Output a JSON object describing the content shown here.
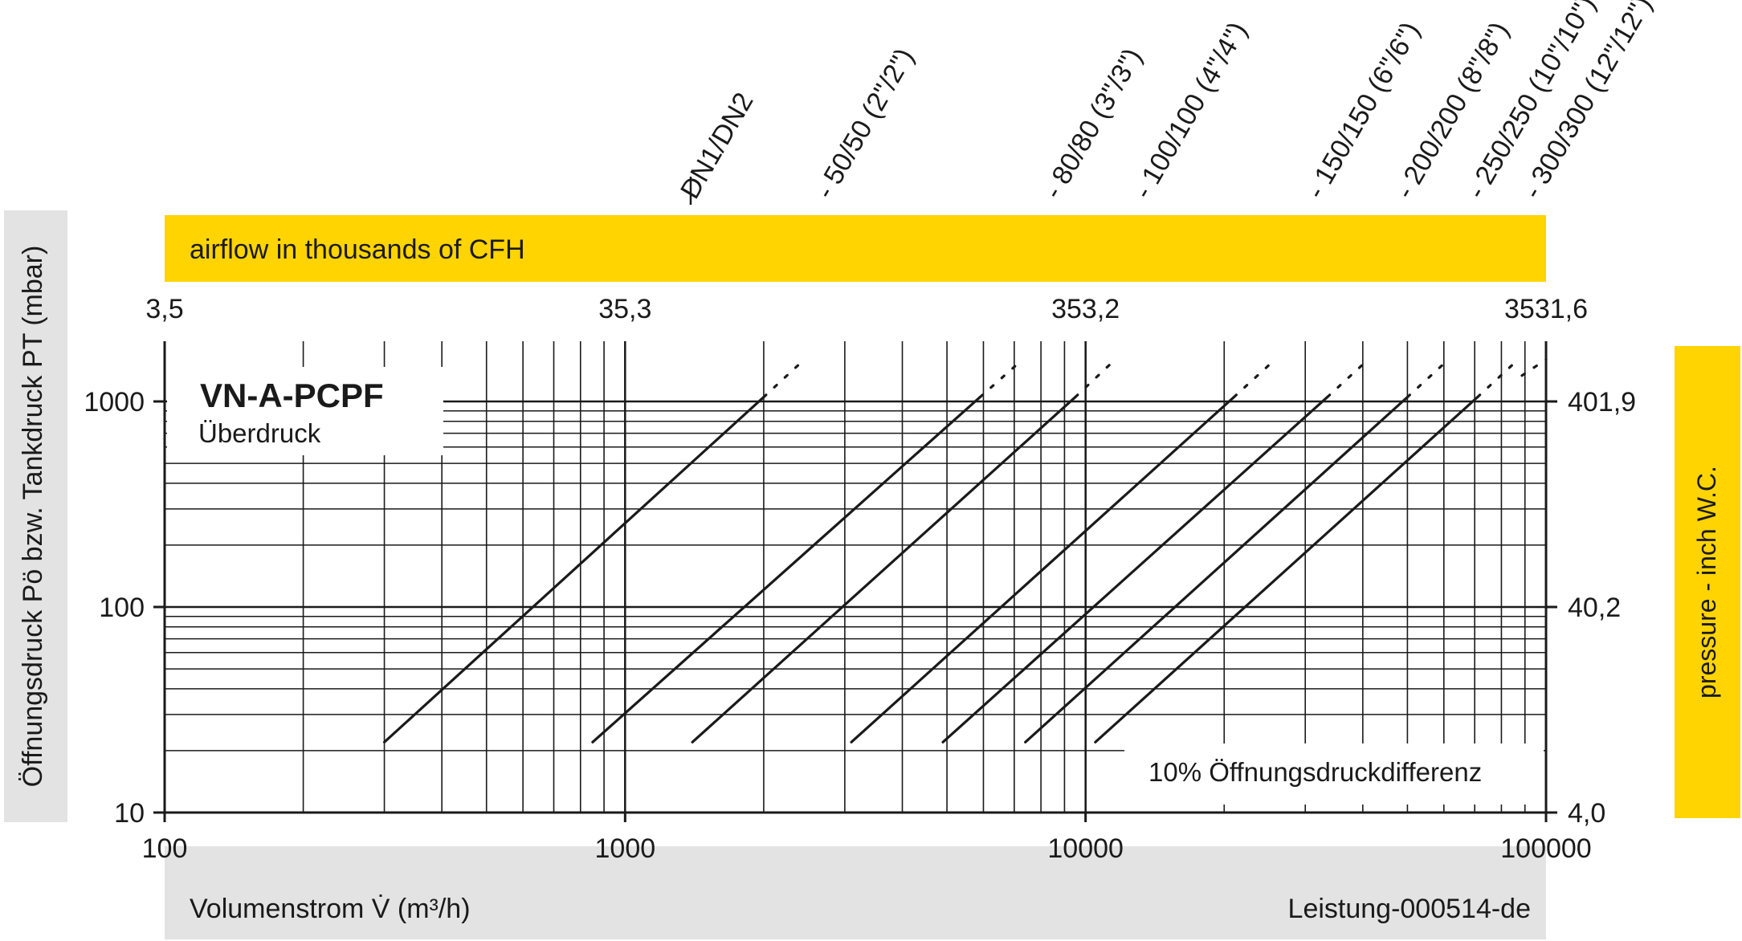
{
  "colors": {
    "accent_yellow": "#ffd400",
    "label_gray": "#e3e3e3",
    "ink": "#1a1a1a",
    "grid": "#1a1a1a",
    "background": "#ffffff"
  },
  "top_bar": {
    "label": "airflow in thousands of CFH"
  },
  "left_bar": {
    "label": "Öffnungsdruck Pö bzw. Tankdruck PT (mbar)"
  },
  "right_bar": {
    "label": "pressure  - inch W.C."
  },
  "bottom_bar": {
    "xlabel": "Volumenstrom V̇ (m³/h)",
    "code": "Leistung-000514-de"
  },
  "legend": {
    "title": "VN-A-PCPF",
    "subtitle": "Überdruck"
  },
  "note": "10% Öffnungsdruckdifferenz",
  "chart_data": {
    "type": "line",
    "xscale": "log",
    "yscale": "log",
    "xlim": [
      100,
      100000
    ],
    "ylim": [
      10,
      1000
    ],
    "grid": true,
    "x_ticks": [
      "100",
      "1000",
      "10000",
      "100000"
    ],
    "x_tick_values": [
      100,
      1000,
      10000,
      100000
    ],
    "y_ticks": [
      "10",
      "100",
      "1000"
    ],
    "y_tick_values": [
      10,
      100,
      1000
    ],
    "top_axis_ticks": [
      "3,5",
      "35,3",
      "353,2",
      "3531,6"
    ],
    "right_axis_ticks": [
      "4,0",
      "40,2",
      "401,9"
    ],
    "series": [
      {
        "name": "DN1/DN2",
        "points": [
          [
            300,
            22
          ],
          [
            2000,
            1050
          ]
        ],
        "dashed_to": [
          2450,
          1600
        ]
      },
      {
        "name": "- 50/50 (2\"/2\")",
        "points": [
          [
            850,
            22
          ],
          [
            5900,
            1050
          ]
        ],
        "dashed_to": [
          7300,
          1600
        ]
      },
      {
        "name": "- 80/80 (3\"/3\")",
        "points": [
          [
            1400,
            22
          ],
          [
            9500,
            1050
          ]
        ],
        "dashed_to": [
          11600,
          1600
        ]
      },
      {
        "name": "- 100/100 (4\"/4\")",
        "points": [
          [
            3100,
            22
          ],
          [
            21000,
            1050
          ]
        ],
        "dashed_to": [
          25800,
          1600
        ]
      },
      {
        "name": "- 150/150 (6\"/6\")",
        "points": [
          [
            4900,
            22
          ],
          [
            33500,
            1050
          ]
        ],
        "dashed_to": [
          41100,
          1600
        ]
      },
      {
        "name": "- 200/200 (8\"/8\")",
        "points": [
          [
            7400,
            22
          ],
          [
            50000,
            1050
          ]
        ],
        "dashed_to": [
          61400,
          1600
        ]
      },
      {
        "name": "- 250/250 (10\"/10\")",
        "points": [
          [
            10500,
            22
          ],
          [
            71000,
            1050
          ]
        ],
        "dashed_to": [
          87000,
          1600
        ]
      },
      {
        "name": "- 300/300 (12\"/12\")",
        "points": [],
        "dashed_to": [
          100000,
          1600
        ]
      }
    ]
  }
}
